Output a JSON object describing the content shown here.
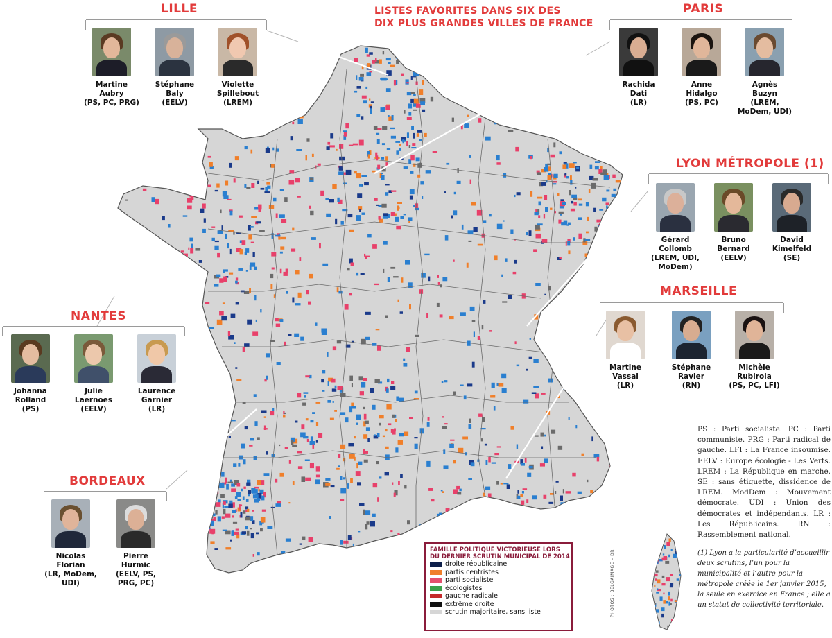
{
  "headline": {
    "line1": "LISTES FAVORITES DANS SIX DES",
    "line2": "DIX PLUS GRANDES VILLES DE FRANCE"
  },
  "cities": {
    "lille": {
      "title": "LILLE",
      "candidates": [
        {
          "name1": "Martine",
          "name2": "Aubry",
          "party": "(PS, PC, PRG)"
        },
        {
          "name1": "Stéphane",
          "name2": "Baly",
          "party": "(EELV)"
        },
        {
          "name1": "Violette",
          "name2": "Spillebout",
          "party": "(LREM)"
        }
      ]
    },
    "paris": {
      "title": "PARIS",
      "candidates": [
        {
          "name1": "Rachida",
          "name2": "Dati",
          "party": "(LR)"
        },
        {
          "name1": "Anne",
          "name2": "Hidalgo",
          "party": "(PS, PC)"
        },
        {
          "name1": "Agnès",
          "name2": "Buzyn",
          "party": "(LREM,",
          "party2": "MoDem, UDI)"
        }
      ]
    },
    "lyon": {
      "title": "LYON MÉTROPOLE (1)",
      "candidates": [
        {
          "name1": "Gérard",
          "name2": "Collomb",
          "party": "(LREM, UDI,",
          "party2": "MoDem)"
        },
        {
          "name1": "Bruno",
          "name2": "Bernard",
          "party": "(EELV)"
        },
        {
          "name1": "David",
          "name2": "Kimelfeld",
          "party": "(SE)"
        }
      ]
    },
    "marseille": {
      "title": "MARSEILLE",
      "candidates": [
        {
          "name1": "Martine",
          "name2": "Vassal",
          "party": "(LR)"
        },
        {
          "name1": "Stéphane",
          "name2": "Ravier",
          "party": "(RN)"
        },
        {
          "name1": "Michèle",
          "name2": "Rubirola",
          "party": "(PS, PC, LFI)"
        }
      ]
    },
    "nantes": {
      "title": "NANTES",
      "candidates": [
        {
          "name1": "Johanna",
          "name2": "Rolland",
          "party": "(PS)"
        },
        {
          "name1": "Julie",
          "name2": "Laernoes",
          "party": "(EELV)"
        },
        {
          "name1": "Laurence",
          "name2": "Garnier",
          "party": "(LR)"
        }
      ]
    },
    "bordeaux": {
      "title": "BORDEAUX",
      "candidates": [
        {
          "name1": "Nicolas",
          "name2": "Florian",
          "party": "(LR, MoDem,",
          "party2": "UDI)"
        },
        {
          "name1": "Pierre",
          "name2": "Hurmic",
          "party": "(EELV, PS,",
          "party2": "PRG, PC)"
        }
      ]
    }
  },
  "legend": {
    "title1": "FAMILLE POLITIQUE VICTORIEUSE LORS",
    "title2": "DU DERNIER SCRUTIN MUNICIPAL DE 2014",
    "items": [
      {
        "label": "droite républicaine",
        "color": "#0d1f4a"
      },
      {
        "label": "partis centristes",
        "color": "#f07f2a"
      },
      {
        "label": "parti socialiste",
        "color": "#e4506d"
      },
      {
        "label": "écologistes",
        "color": "#3aa04a"
      },
      {
        "label": "gauche radicale",
        "color": "#c42a2a"
      },
      {
        "label": "extrême droite",
        "color": "#111111"
      },
      {
        "label": "scrutin majoritaire, sans liste",
        "color": "#d6d6d6"
      }
    ]
  },
  "notes": "PS : Parti socialiste. PC : Parti communiste. PRG : Parti radical de gauche. LFI : La France insoumise. EELV : Europe écologie - Les Verts. LREM : La République en marche. SE : sans étiquette, dissidence de LREM. ModDem : Mouvement démocrate. UDI : Union des démocrates et indépendants. LR : Les Républicains. RN : Rassemblement national.",
  "footnote": "(1) Lyon a la particularité d’accueillir deux scrutins, l’un pour la municipalité et l’autre pour la métropole créée le 1er janvier 2015, la seule en exercice en France ; elle a un statut de collectivité territoriale.",
  "credit": "PHOTOS : BELGAIMAGE – DR",
  "colors": {
    "title_red": "#e23b3b",
    "legend_border": "#8a1c3b",
    "map_blue": "#2a7fd0",
    "map_pink": "#e8406a",
    "map_gray": "#d6d6d6",
    "map_dark": "#6b6b6b"
  }
}
